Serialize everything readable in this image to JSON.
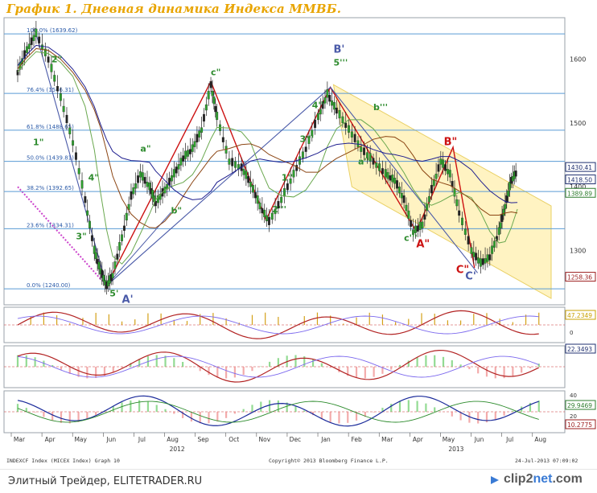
{
  "title": "График 1.   Дневная динамика Индекса ММВБ.",
  "chart_data": {
    "type": "line",
    "ylim": [
      1215,
      1665
    ],
    "yticks": [
      1300,
      1400,
      1500,
      1600
    ],
    "xlabels": [
      "Mar",
      "Apr",
      "May",
      "Jun",
      "Jul",
      "Aug",
      "Sep",
      "Oct",
      "Nov",
      "Dec",
      "Jan",
      "Feb",
      "Mar",
      "Apr",
      "May",
      "Jun",
      "Jul",
      "Aug"
    ],
    "year_labels": [
      "2012",
      "2013"
    ],
    "price_path": [
      [
        0,
        1580
      ],
      [
        0.3,
        1615
      ],
      [
        0.6,
        1640
      ],
      [
        1,
        1600
      ],
      [
        1.4,
        1540
      ],
      [
        1.8,
        1470
      ],
      [
        2.2,
        1380
      ],
      [
        2.5,
        1300
      ],
      [
        2.7,
        1268
      ],
      [
        2.9,
        1245
      ],
      [
        3.1,
        1262
      ],
      [
        3.4,
        1320
      ],
      [
        3.7,
        1385
      ],
      [
        4.0,
        1420
      ],
      [
        4.3,
        1400
      ],
      [
        4.5,
        1375
      ],
      [
        4.8,
        1395
      ],
      [
        5.1,
        1420
      ],
      [
        5.4,
        1445
      ],
      [
        5.7,
        1460
      ],
      [
        6.0,
        1490
      ],
      [
        6.3,
        1560
      ],
      [
        6.5,
        1510
      ],
      [
        6.9,
        1440
      ],
      [
        7.3,
        1430
      ],
      [
        7.6,
        1405
      ],
      [
        7.9,
        1370
      ],
      [
        8.2,
        1345
      ],
      [
        8.6,
        1380
      ],
      [
        9.0,
        1420
      ],
      [
        9.4,
        1460
      ],
      [
        9.8,
        1510
      ],
      [
        10.1,
        1545
      ],
      [
        10.4,
        1520
      ],
      [
        10.8,
        1490
      ],
      [
        11.2,
        1460
      ],
      [
        11.6,
        1440
      ],
      [
        12.0,
        1420
      ],
      [
        12.3,
        1410
      ],
      [
        12.6,
        1380
      ],
      [
        12.9,
        1330
      ],
      [
        13.2,
        1340
      ],
      [
        13.5,
        1395
      ],
      [
        13.8,
        1440
      ],
      [
        14.1,
        1420
      ],
      [
        14.4,
        1360
      ],
      [
        14.8,
        1300
      ],
      [
        15.1,
        1280
      ],
      [
        15.4,
        1290
      ],
      [
        15.7,
        1330
      ],
      [
        15.9,
        1370
      ],
      [
        16.1,
        1410
      ],
      [
        16.3,
        1425
      ]
    ],
    "fib_levels": [
      {
        "label": "100.0% (1639.62)",
        "value": 1639.62
      },
      {
        "label": "76.4% (1546.31)",
        "value": 1546.31
      },
      {
        "label": "61.8% (1488.65)",
        "value": 1488.65
      },
      {
        "label": "50.0% (1439.81)",
        "value": 1439.81
      },
      {
        "label": "38.2% (1392.65)",
        "value": 1392.65
      },
      {
        "label": "23.6% (1334.31)",
        "value": 1334.31
      },
      {
        "label": "0.0% (1240.00)",
        "value": 1240.0
      }
    ],
    "right_labels": [
      {
        "text": "1430.41",
        "value": 1430.41
      },
      {
        "text": "1418.50",
        "value": 1418.5
      },
      {
        "text": "1389.89",
        "value": 1389.89
      },
      {
        "text": "1258.36",
        "value": 1258.36
      }
    ],
    "wave_labels": [
      {
        "text": "2\"",
        "x": 1.1,
        "y": 1595,
        "color": "#2e8b2e"
      },
      {
        "text": "1\"",
        "x": 0.5,
        "y": 1465,
        "color": "#2e8b2e"
      },
      {
        "text": "4\"",
        "x": 2.3,
        "y": 1410,
        "color": "#2e8b2e"
      },
      {
        "text": "3\"",
        "x": 1.9,
        "y": 1318,
        "color": "#2e8b2e"
      },
      {
        "text": "5'",
        "x": 3.0,
        "y": 1228,
        "color": "#2e8b2e"
      },
      {
        "text": "A'",
        "x": 3.4,
        "y": 1218,
        "color": "#4a5aa8"
      },
      {
        "text": "a\"",
        "x": 4.0,
        "y": 1455,
        "color": "#2e8b2e"
      },
      {
        "text": "b\"",
        "x": 5.0,
        "y": 1358,
        "color": "#2e8b2e"
      },
      {
        "text": "c\"",
        "x": 6.3,
        "y": 1575,
        "color": "#2e8b2e"
      },
      {
        "text": "1'''",
        "x": 8.6,
        "y": 1410,
        "color": "#2e8b2e"
      },
      {
        "text": "2'''",
        "x": 8.3,
        "y": 1360,
        "color": "#2e8b2e"
      },
      {
        "text": "3'''",
        "x": 9.2,
        "y": 1470,
        "color": "#2e8b2e"
      },
      {
        "text": "4'''",
        "x": 9.6,
        "y": 1523,
        "color": "#2e8b2e"
      },
      {
        "text": "5'''",
        "x": 10.3,
        "y": 1590,
        "color": "#2e8b2e"
      },
      {
        "text": "B'",
        "x": 10.3,
        "y": 1610,
        "color": "#4a5aa8"
      },
      {
        "text": "a'''",
        "x": 11.1,
        "y": 1435,
        "color": "#2e8b2e"
      },
      {
        "text": "b'''",
        "x": 11.6,
        "y": 1520,
        "color": "#2e8b2e"
      },
      {
        "text": "c'''",
        "x": 12.6,
        "y": 1315,
        "color": "#2e8b2e"
      },
      {
        "text": "A\"",
        "x": 13.0,
        "y": 1305,
        "color": "#cc1111"
      },
      {
        "text": "B\"",
        "x": 13.9,
        "y": 1465,
        "color": "#cc1111"
      },
      {
        "text": "C\"",
        "x": 14.3,
        "y": 1265,
        "color": "#cc1111"
      },
      {
        "text": "C'",
        "x": 14.6,
        "y": 1255,
        "color": "#4a5aa8"
      }
    ],
    "panel_labels": [
      "47.2349",
      "22.3493",
      "29.9469",
      "10.2775"
    ],
    "panel_ticks": [
      "0",
      "40",
      "20"
    ],
    "source_left": "INDEXCF Index (MICEX Index) Graph 10",
    "source_center": "Copyright© 2013 Bloomberg Finance L.P.",
    "source_right": "24-Jul-2013 07:09:02"
  },
  "footer": {
    "left_text": "Элитный Трейдер, ELITETRADER.RU",
    "brand_a": "clip2",
    "brand_b": "net",
    "brand_c": ".com"
  },
  "colors": {
    "title": "#e8a400",
    "fib_line": "#5a9bd5",
    "channel_fill": "#fff2b8",
    "wave_red": "#cc1111",
    "wave_blue": "#4a5aa8",
    "wave_green": "#2e8b2e"
  }
}
